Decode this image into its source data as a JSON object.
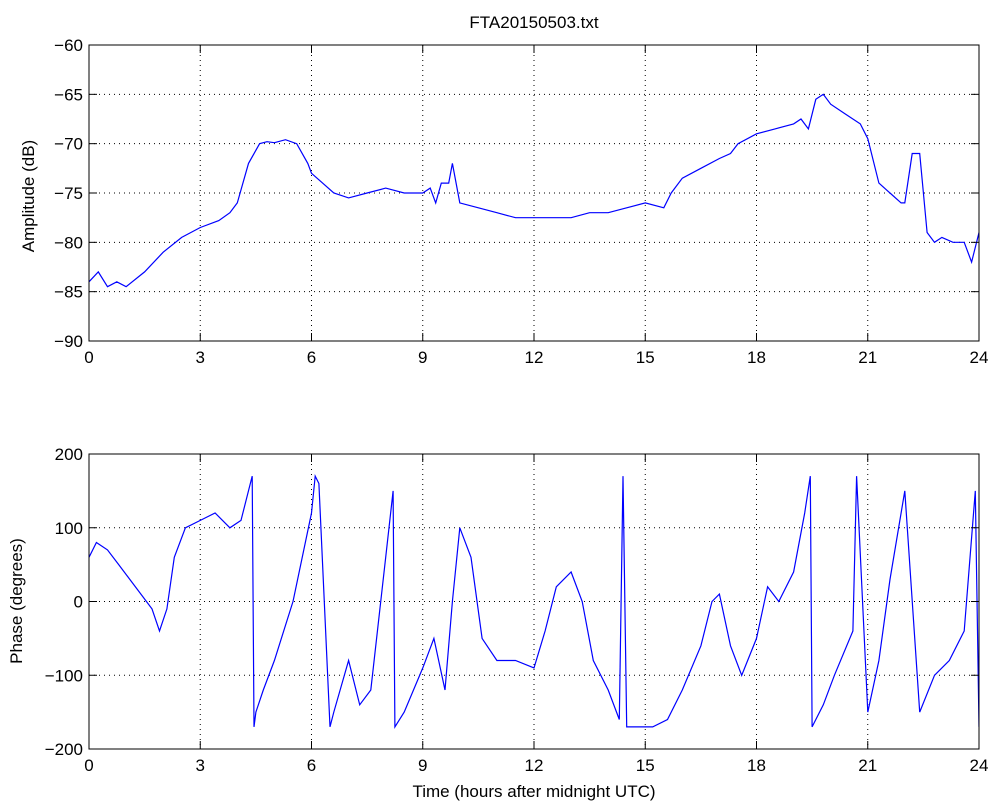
{
  "figure": {
    "title": "FTA20150503.txt",
    "line_color": "#0000ff"
  },
  "chart_data": [
    {
      "type": "line",
      "title": "FTA20150503.txt",
      "xlabel": "",
      "ylabel": "Amplitude (dB)",
      "xlim": [
        0,
        24
      ],
      "ylim": [
        -90,
        -60
      ],
      "xticks": [
        0,
        3,
        6,
        9,
        12,
        15,
        18,
        21,
        24
      ],
      "yticks": [
        -90,
        -85,
        -80,
        -75,
        -70,
        -65,
        -60
      ],
      "grid": true,
      "series": [
        {
          "color": "#0000ff",
          "x": [
            0,
            0.25,
            0.5,
            0.75,
            1.0,
            1.5,
            2.0,
            2.5,
            3.0,
            3.5,
            3.8,
            4.0,
            4.3,
            4.6,
            4.8,
            5.0,
            5.3,
            5.6,
            5.9,
            6.0,
            6.3,
            6.6,
            7.0,
            7.5,
            8.0,
            8.5,
            9.0,
            9.2,
            9.35,
            9.5,
            9.7,
            9.8,
            10.0,
            10.5,
            11.0,
            11.5,
            12.0,
            12.5,
            13.0,
            13.5,
            14.0,
            14.5,
            15.0,
            15.5,
            15.7,
            16.0,
            16.5,
            17.0,
            17.3,
            17.5,
            18.0,
            18.5,
            19.0,
            19.2,
            19.4,
            19.6,
            19.8,
            20.0,
            20.4,
            20.8,
            21.0,
            21.3,
            21.6,
            21.9,
            22.0,
            22.2,
            22.4,
            22.6,
            22.8,
            23.0,
            23.3,
            23.6,
            23.8,
            24.0
          ],
          "y": [
            -84,
            -83,
            -84.5,
            -84,
            -84.5,
            -83,
            -81,
            -79.5,
            -78.5,
            -77.8,
            -77,
            -76,
            -72,
            -70,
            -69.8,
            -69.9,
            -69.6,
            -70,
            -72,
            -73,
            -74,
            -75,
            -75.5,
            -75,
            -74.5,
            -75,
            -75,
            -74.5,
            -76,
            -74,
            -74,
            -72,
            -76,
            -76.5,
            -77,
            -77.5,
            -77.5,
            -77.5,
            -77.5,
            -77,
            -77,
            -76.5,
            -76,
            -76.5,
            -75,
            -73.5,
            -72.5,
            -71.5,
            -71,
            -70,
            -69,
            -68.5,
            -68,
            -67.5,
            -68.5,
            -65.5,
            -65,
            -66,
            -67,
            -68,
            -69.5,
            -74,
            -75,
            -76,
            -76,
            -71,
            -71,
            -79,
            -80,
            -79.5,
            -80,
            -80,
            -82,
            -79
          ]
        }
      ]
    },
    {
      "type": "line",
      "title": "",
      "xlabel": "Time (hours after midnight UTC)",
      "ylabel": "Phase (degrees)",
      "xlim": [
        0,
        24
      ],
      "ylim": [
        -200,
        200
      ],
      "xticks": [
        0,
        3,
        6,
        9,
        12,
        15,
        18,
        21,
        24
      ],
      "yticks": [
        -200,
        -100,
        0,
        100,
        200
      ],
      "grid": true,
      "series": [
        {
          "color": "#0000ff",
          "x": [
            0,
            0.2,
            0.5,
            0.8,
            1.1,
            1.4,
            1.7,
            1.9,
            2.1,
            2.3,
            2.6,
            3.0,
            3.4,
            3.8,
            4.1,
            4.4,
            4.45,
            4.5,
            4.7,
            5.0,
            5.5,
            6.0,
            6.1,
            6.2,
            6.5,
            6.6,
            7.0,
            7.3,
            7.6,
            8.0,
            8.2,
            8.25,
            8.5,
            9.0,
            9.3,
            9.6,
            9.8,
            10.0,
            10.3,
            10.6,
            11.0,
            11.5,
            12.0,
            12.3,
            12.6,
            13.0,
            13.3,
            13.6,
            14.0,
            14.3,
            14.4,
            14.5,
            14.9,
            15.2,
            15.6,
            16.0,
            16.5,
            16.8,
            17.0,
            17.3,
            17.6,
            18.0,
            18.3,
            18.6,
            19.0,
            19.3,
            19.45,
            19.5,
            19.8,
            20.1,
            20.6,
            20.7,
            21.0,
            21.3,
            21.6,
            22.0,
            22.4,
            22.8,
            23.2,
            23.6,
            23.9,
            24.0
          ],
          "y": [
            60,
            80,
            70,
            50,
            30,
            10,
            -10,
            -40,
            -10,
            60,
            100,
            110,
            120,
            100,
            110,
            170,
            -170,
            -150,
            -120,
            -80,
            0,
            120,
            170,
            160,
            -170,
            -150,
            -80,
            -140,
            -120,
            60,
            150,
            -170,
            -150,
            -90,
            -50,
            -120,
            0,
            100,
            60,
            -50,
            -80,
            -80,
            -90,
            -40,
            20,
            40,
            0,
            -80,
            -120,
            -160,
            170,
            -170,
            -170,
            -170,
            -160,
            -120,
            -60,
            0,
            10,
            -60,
            -100,
            -50,
            20,
            0,
            40,
            120,
            170,
            -170,
            -140,
            -100,
            -40,
            170,
            -150,
            -80,
            30,
            150,
            -150,
            -100,
            -80,
            -40,
            150,
            -170
          ]
        }
      ]
    }
  ]
}
